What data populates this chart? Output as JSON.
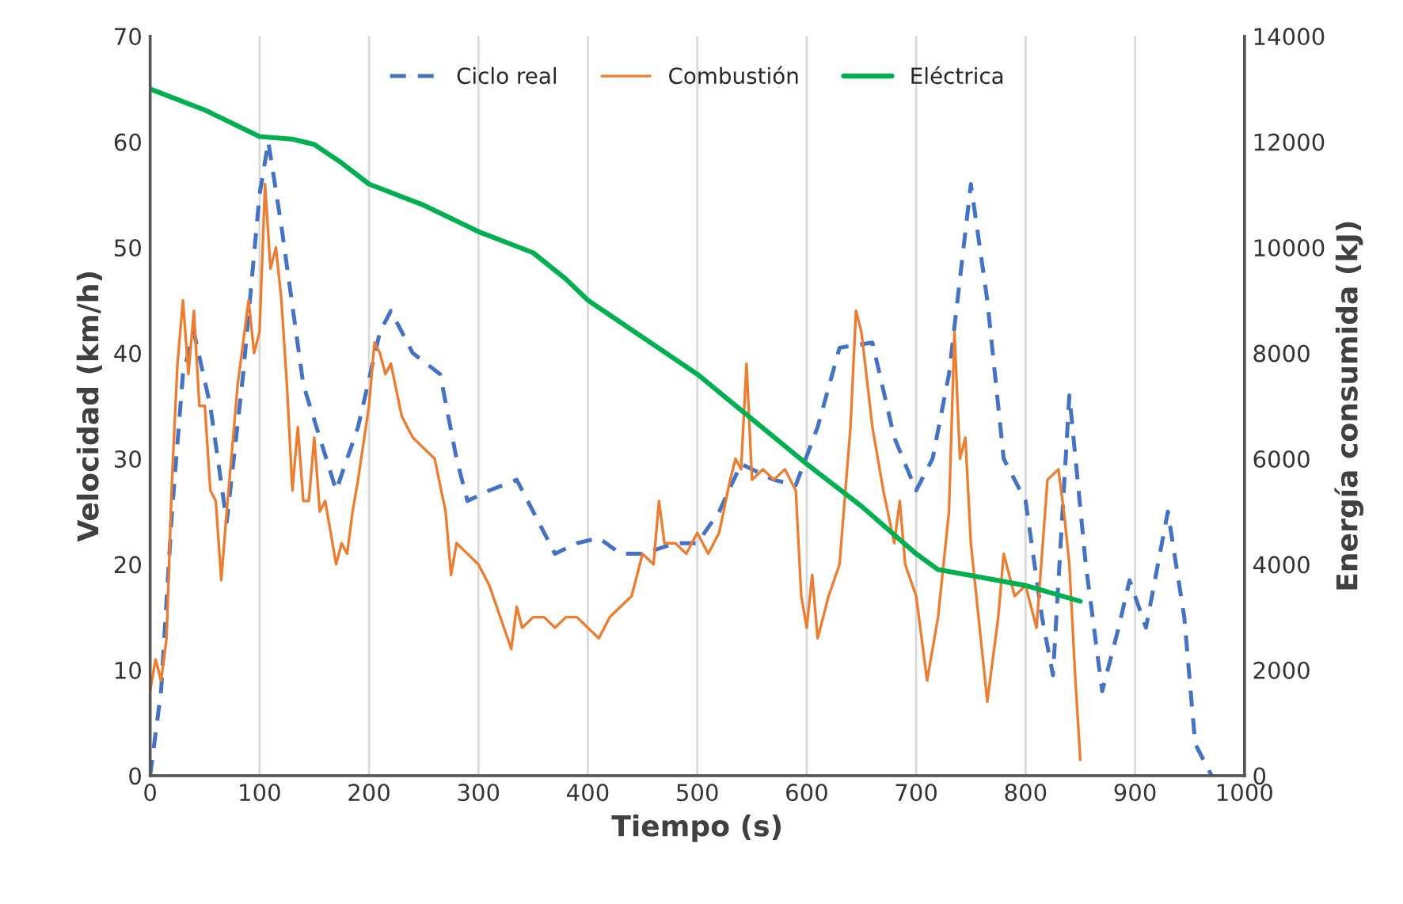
{
  "chart_data": {
    "type": "line",
    "xlabel": "Tiempo (s)",
    "ylabel": "Velocidad (km/h)",
    "y2label": "Energía consumida (kJ)",
    "xlim": [
      0,
      1000
    ],
    "xticks": [
      0,
      100,
      200,
      300,
      400,
      500,
      600,
      700,
      800,
      900,
      1000
    ],
    "ylim": [
      0,
      70
    ],
    "yticks": [
      0,
      10,
      20,
      30,
      40,
      50,
      60,
      70
    ],
    "y2lim": [
      0,
      14000
    ],
    "y2ticks": [
      0,
      2000,
      4000,
      6000,
      8000,
      10000,
      12000,
      14000
    ],
    "grid": "x",
    "legend": "top",
    "marker": "none",
    "series": [
      {
        "name": "Ciclo real",
        "color": "#4472c4",
        "line_style": "dashed",
        "x": [
          0,
          10,
          20,
          30,
          40,
          55,
          70,
          85,
          100,
          108,
          120,
          140,
          170,
          190,
          210,
          220,
          240,
          265,
          280,
          290,
          310,
          335,
          355,
          370,
          390,
          410,
          430,
          450,
          480,
          500,
          520,
          540,
          570,
          590,
          610,
          630,
          660,
          680,
          700,
          715,
          730,
          750,
          765,
          780,
          800,
          815,
          825,
          840,
          855,
          870,
          885,
          895,
          910,
          930,
          945,
          955,
          970
        ],
        "values": [
          0,
          8,
          25,
          38,
          42,
          35,
          24,
          38,
          55,
          60,
          52,
          37,
          27,
          33,
          42,
          44,
          40,
          38,
          30,
          26,
          27,
          28,
          24,
          21,
          22,
          22.5,
          21,
          21,
          22,
          22,
          25,
          29.5,
          28,
          27.5,
          33,
          40.5,
          41,
          32,
          27,
          30,
          38,
          56,
          45,
          30,
          26,
          15,
          9.5,
          36,
          20,
          8,
          14,
          18.5,
          14,
          25,
          15,
          3,
          0
        ]
      },
      {
        "name": "Combustión",
        "color": "#ed7d31",
        "line_style": "solid",
        "x": [
          0,
          5,
          10,
          15,
          20,
          25,
          30,
          35,
          40,
          45,
          50,
          55,
          60,
          65,
          70,
          80,
          90,
          95,
          100,
          105,
          110,
          115,
          120,
          125,
          130,
          135,
          140,
          145,
          150,
          155,
          160,
          170,
          175,
          180,
          185,
          190,
          200,
          205,
          210,
          215,
          220,
          230,
          240,
          250,
          260,
          270,
          275,
          280,
          290,
          300,
          310,
          320,
          330,
          335,
          340,
          350,
          360,
          370,
          380,
          390,
          400,
          410,
          420,
          430,
          440,
          450,
          460,
          465,
          470,
          480,
          490,
          500,
          510,
          520,
          530,
          535,
          540,
          545,
          550,
          560,
          570,
          580,
          590,
          595,
          600,
          605,
          610,
          620,
          630,
          640,
          645,
          650,
          660,
          670,
          680,
          685,
          690,
          700,
          710,
          720,
          730,
          735,
          740,
          745,
          750,
          760,
          765,
          775,
          780,
          790,
          800,
          810,
          820,
          830,
          835,
          840,
          845,
          850
        ],
        "values": [
          8,
          11,
          9,
          13,
          28,
          39,
          45,
          38,
          44,
          35,
          35,
          27,
          26,
          18.5,
          25,
          37,
          45,
          40,
          42,
          56,
          48,
          50,
          45,
          37,
          27,
          33,
          26,
          26,
          32,
          25,
          26,
          20,
          22,
          21,
          25,
          28,
          35,
          41,
          40,
          38,
          39,
          34,
          32,
          31,
          30,
          25,
          19,
          22,
          21,
          20,
          18,
          15,
          12,
          16,
          14,
          15,
          15,
          14,
          15,
          15,
          14,
          13,
          15,
          16,
          17,
          21,
          20,
          26,
          22,
          22,
          21,
          23,
          21,
          23,
          28,
          30,
          29,
          39,
          28,
          29,
          28,
          29,
          27,
          17,
          14,
          19,
          13,
          17,
          20,
          33,
          44,
          42,
          33,
          27,
          22,
          26,
          20,
          17,
          9,
          15,
          25,
          42,
          30,
          32,
          22,
          12,
          7,
          15,
          21,
          17,
          18,
          14,
          28,
          29,
          25,
          20,
          10,
          1.5
        ]
      },
      {
        "name": "Eléctrica",
        "color": "#00b050",
        "line_style": "solid",
        "axis": "y2",
        "x": [
          0,
          50,
          100,
          130,
          150,
          175,
          200,
          250,
          300,
          350,
          380,
          400,
          450,
          500,
          550,
          600,
          650,
          700,
          720,
          760,
          800,
          850
        ],
        "values": [
          13000,
          12600,
          12100,
          12050,
          11950,
          11600,
          11200,
          10800,
          10300,
          9900,
          9400,
          9000,
          8300,
          7600,
          6750,
          5900,
          5100,
          4200,
          3900,
          3750,
          3600,
          3300
        ]
      }
    ]
  }
}
